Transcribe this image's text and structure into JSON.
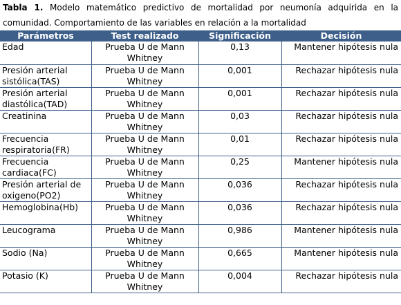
{
  "caption": {
    "label": "Tabla 1.",
    "text_line1": "Modelo matemático predictivo de mortalidad por neumonía adquirida en la",
    "text_line2": "comunidad. Comportamiento de las variables en relación a la mortalidad"
  },
  "table": {
    "headers": [
      "Parámetros",
      "Test realizado",
      "Significación",
      "Decisión"
    ],
    "rows": [
      {
        "param": "Edad",
        "test": "Prueba U de Mann Whitney",
        "sig": "0,13",
        "decision": "Mantener hipótesis nula"
      },
      {
        "param": "Presión arterial sistólica(TAS)",
        "test": "Prueba U de Mann Whitney",
        "sig": "0,001",
        "decision": "Rechazar hipótesis nula"
      },
      {
        "param": "Presión arterial diastólica(TAD)",
        "test": "Prueba U de Mann Whitney",
        "sig": "0,001",
        "decision": "Rechazar hipótesis nula"
      },
      {
        "param": "Creatinina",
        "test": "Prueba U de Mann Whitney",
        "sig": "0,03",
        "decision": "Rechazar hipótesis nula"
      },
      {
        "param": "Frecuencia respiratoria(FR)",
        "test": "Prueba U de Mann Whitney",
        "sig": "0,01",
        "decision": "Rechazar hipótesis nula"
      },
      {
        "param": "Frecuencia cardiaca(FC)",
        "test": "Prueba U de Mann Whitney",
        "sig": "0,25",
        "decision": "Mantener hipótesis nula"
      },
      {
        "param": "Presión arterial de oxigeno(PO2)",
        "test": "Prueba U de Mann Whitney",
        "sig": "0,036",
        "decision": "Rechazar hipótesis nula"
      },
      {
        "param": "Hemoglobina(Hb)",
        "test": "Prueba U de Mann Whitney",
        "sig": "0,036",
        "decision": "Rechazar hipótesis nula"
      },
      {
        "param": "Leucograma",
        "test": "Prueba U de Mann Whitney",
        "sig": "0,986",
        "decision": "Mantener hipótesis nula"
      },
      {
        "param": "Sodio (Na)",
        "test": "Prueba U de Mann Whitney",
        "sig": "0,665",
        "decision": "Mantener hipótesis nula"
      },
      {
        "param": "Potasio (K)",
        "test": "Prueba U de Mann Whitney",
        "sig": "0,004",
        "decision": "Rechazar hipótesis nula"
      }
    ]
  }
}
